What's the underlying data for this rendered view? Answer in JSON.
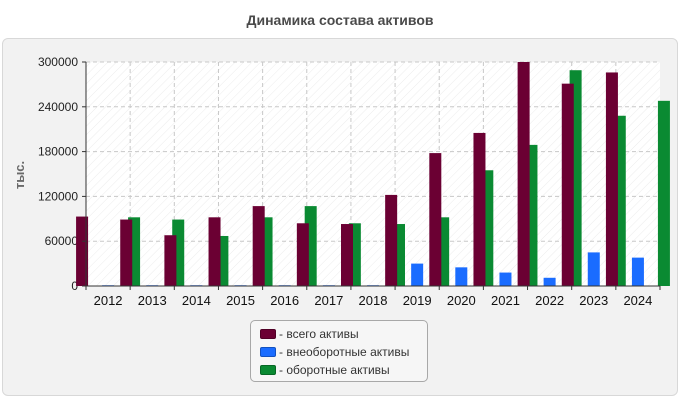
{
  "chart_data": {
    "type": "bar",
    "title": "Динамика состава активов",
    "ylabel": "тыс.",
    "xlabel": "",
    "ylim": [
      0,
      300000
    ],
    "yticks": [
      0,
      60000,
      120000,
      180000,
      240000,
      300000
    ],
    "grid": true,
    "legend_position": "bottom-center",
    "categories": [
      "2012",
      "2013",
      "2014",
      "2015",
      "2016",
      "2017",
      "2018",
      "2019",
      "2020",
      "2021",
      "2022",
      "2023",
      "2024"
    ],
    "series": [
      {
        "name": "- всего активы",
        "color": "#6b0033",
        "values": [
          93000,
          89000,
          68000,
          92000,
          107000,
          84000,
          83000,
          122000,
          178000,
          205000,
          300000,
          271000,
          286000
        ]
      },
      {
        "name": "- внеоборотные активы",
        "color": "#1a6cff",
        "values": [
          1000,
          1000,
          1000,
          1000,
          1000,
          1000,
          1000,
          30000,
          25000,
          18000,
          11000,
          45000,
          38000
        ]
      },
      {
        "name": "- оборотные активы",
        "color": "#0a8a32",
        "values": [
          92000,
          89000,
          67000,
          92000,
          107000,
          84000,
          83000,
          92000,
          155000,
          189000,
          289000,
          228000,
          248000
        ]
      }
    ]
  }
}
